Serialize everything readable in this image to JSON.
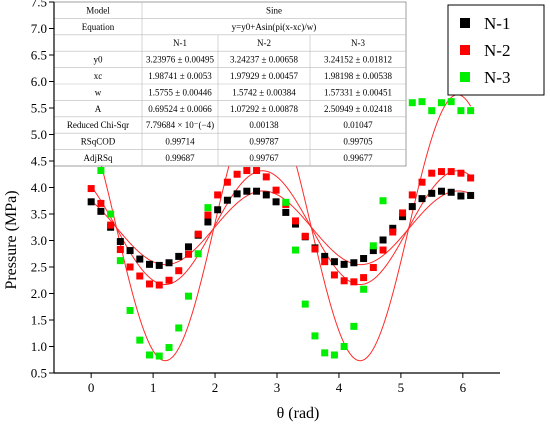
{
  "chart_data": {
    "type": "scatter",
    "title": "",
    "xlabel": "θ (rad)",
    "ylabel": "Pressure (MPa)",
    "xlim": [
      -0.6,
      6.6
    ],
    "ylim": [
      0.5,
      7.5
    ],
    "xticks": [
      0,
      1,
      2,
      3,
      4,
      5,
      6
    ],
    "yticks": [
      0.5,
      1.0,
      1.5,
      2.0,
      2.5,
      3.0,
      3.5,
      4.0,
      4.5,
      5.0,
      5.5,
      6.0,
      6.5,
      7.0,
      7.5
    ],
    "legend_position": "top-right outside",
    "x": [
      0,
      0.157,
      0.314,
      0.471,
      0.628,
      0.785,
      0.942,
      1.099,
      1.257,
      1.414,
      1.571,
      1.728,
      1.885,
      2.042,
      2.199,
      2.356,
      2.513,
      2.67,
      2.827,
      2.985,
      3.142,
      3.299,
      3.456,
      3.613,
      3.77,
      3.927,
      4.084,
      4.241,
      4.398,
      4.555,
      4.712,
      4.869,
      5.027,
      5.184,
      5.341,
      5.498,
      5.655,
      5.812,
      5.969,
      6.126
    ],
    "series": [
      {
        "name": "N-1",
        "color": "#000000",
        "values": [
          3.73,
          3.55,
          3.25,
          2.98,
          2.81,
          2.65,
          2.55,
          2.53,
          2.58,
          2.7,
          2.88,
          3.1,
          3.35,
          3.58,
          3.76,
          3.88,
          3.93,
          3.93,
          3.86,
          3.73,
          3.53,
          3.31,
          3.07,
          2.86,
          2.7,
          2.6,
          2.55,
          2.58,
          2.66,
          2.81,
          3.01,
          3.23,
          3.45,
          3.64,
          3.79,
          3.89,
          3.93,
          3.91,
          3.84,
          3.85
        ],
        "fit": {
          "equation": "y=y0+Asin(pi(x-xc)/w)",
          "y0": 3.23976,
          "xc": 1.98741,
          "w": 1.5755,
          "A": 0.69524
        }
      },
      {
        "name": "N-2",
        "color": "#ff0000",
        "values": [
          3.98,
          3.7,
          3.29,
          2.83,
          2.5,
          2.33,
          2.18,
          2.16,
          2.25,
          2.43,
          2.74,
          3.12,
          3.48,
          3.86,
          4.1,
          4.25,
          4.32,
          4.32,
          4.2,
          3.95,
          3.68,
          3.37,
          3.08,
          2.84,
          2.6,
          2.35,
          2.24,
          2.22,
          2.3,
          2.49,
          2.82,
          3.16,
          3.52,
          3.86,
          4.1,
          4.27,
          4.3,
          4.3,
          4.27,
          4.18
        ],
        "fit": {
          "equation": "y=y0+Asin(pi(x-xc)/w)",
          "y0": 3.24237,
          "xc": 1.97929,
          "w": 1.5742,
          "A": 1.07292
        }
      },
      {
        "name": "N-3",
        "color": "#00ee00",
        "values": [
          5.05,
          4.32,
          3.5,
          2.62,
          1.68,
          1.12,
          0.84,
          0.82,
          0.98,
          1.35,
          1.95,
          2.75,
          3.62,
          4.55,
          5.3,
          5.6,
          5.65,
          5.55,
          5.1,
          4.52,
          3.72,
          2.82,
          1.8,
          1.2,
          0.88,
          0.84,
          1.0,
          1.38,
          2.08,
          2.9,
          3.75,
          4.72,
          5.38,
          5.6,
          5.62,
          5.45,
          5.6,
          5.62,
          5.45,
          5.45
        ],
        "fit": {
          "equation": "y=y0+Asin(pi(x-xc)/w)",
          "y0": 3.24152,
          "xc": 1.98198,
          "w": 1.57331,
          "A": 2.50949
        }
      }
    ]
  },
  "fit_table": {
    "model_label": "Model",
    "model_value": "Sine",
    "equation_label": "Equation",
    "equation_value": "y=y0+Asin(pi(x-xc)/w)",
    "columns": [
      "",
      "N-1",
      "N-2",
      "N-3"
    ],
    "rows": [
      {
        "label": "y0",
        "values": [
          "3.23976 ± 0.00495",
          "3.24237 ± 0.00658",
          "3.24152 ± 0.01812"
        ]
      },
      {
        "label": "xc",
        "values": [
          "1.98741 ± 0.0053",
          "1.97929 ± 0.00457",
          "1.98198 ± 0.00538"
        ]
      },
      {
        "label": "w",
        "values": [
          "1.5755 ± 0.00446",
          "1.5742 ± 0.00384",
          "1.57331 ± 0.00451"
        ]
      },
      {
        "label": "A",
        "values": [
          "0.69524 ± 0.0066",
          "1.07292 ± 0.00878",
          "2.50949 ± 0.02418"
        ]
      },
      {
        "label": "Reduced Chi-Sqr",
        "values": [
          "7.79684 × 10⁻(−4)",
          "0.00138",
          "0.01047"
        ]
      },
      {
        "label": "RSqCOD",
        "values": [
          "0.99714",
          "0.99787",
          "0.99705"
        ]
      },
      {
        "label": "AdjRSq",
        "values": [
          "0.99687",
          "0.99767",
          "0.99677"
        ]
      }
    ]
  }
}
